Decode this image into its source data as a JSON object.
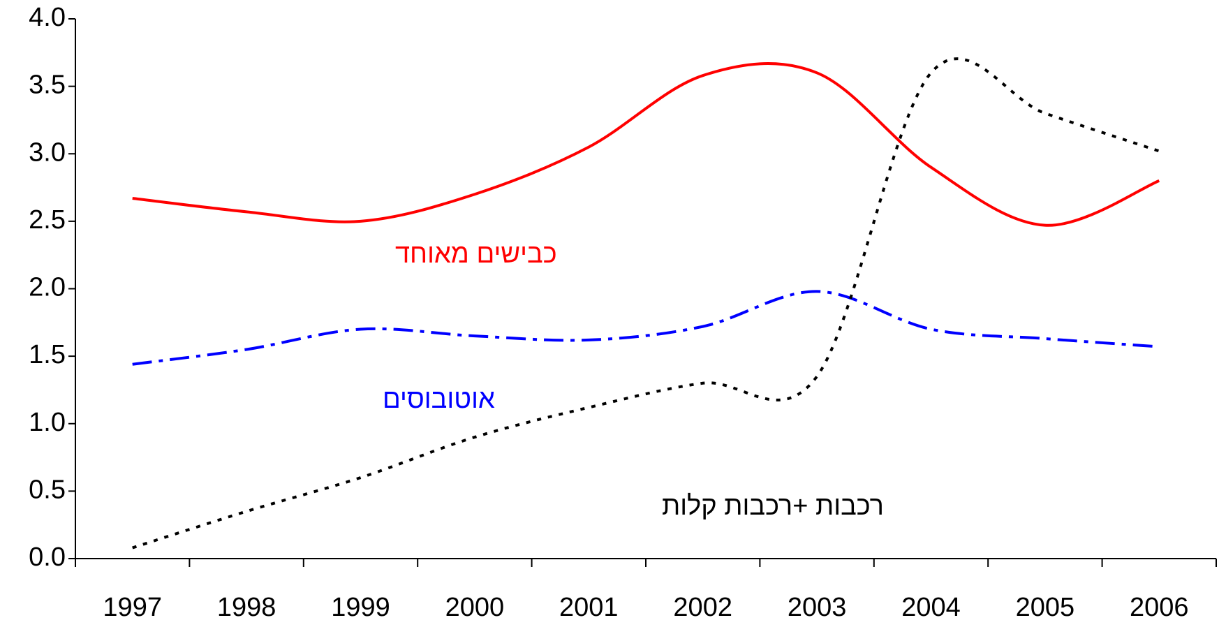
{
  "chart_data": {
    "type": "line",
    "categories": [
      "1997",
      "1998",
      "1999",
      "2000",
      "2001",
      "2002",
      "2003",
      "2004",
      "2005",
      "2006"
    ],
    "series": [
      {
        "name": "כבישים מאוחד",
        "color": "#ff0000",
        "values": [
          2.67,
          2.57,
          2.5,
          2.7,
          3.05,
          3.58,
          3.6,
          2.9,
          2.47,
          2.8
        ]
      },
      {
        "name": "אוטובוסים",
        "color": "#0000ff",
        "values": [
          1.44,
          1.55,
          1.7,
          1.65,
          1.62,
          1.72,
          1.98,
          1.7,
          1.63,
          1.57
        ]
      },
      {
        "name": "רכבות +רכבות קלות",
        "color": "#000000",
        "values": [
          0.08,
          0.35,
          0.6,
          0.9,
          1.12,
          1.3,
          1.35,
          3.6,
          3.3,
          3.02
        ]
      }
    ],
    "ylim": [
      0,
      4
    ],
    "yticks": [
      {
        "value": 0,
        "label": "0.0"
      },
      {
        "value": 0.5,
        "label": "0.5"
      },
      {
        "value": 1,
        "label": "1.0"
      },
      {
        "value": 1.5,
        "label": "1.5"
      },
      {
        "value": 2,
        "label": "2.0"
      },
      {
        "value": 2.5,
        "label": "2.5"
      },
      {
        "value": 3,
        "label": "3.0"
      },
      {
        "value": 3.5,
        "label": "3.5"
      },
      {
        "value": 4,
        "label": "4.0"
      }
    ],
    "grid": false
  }
}
